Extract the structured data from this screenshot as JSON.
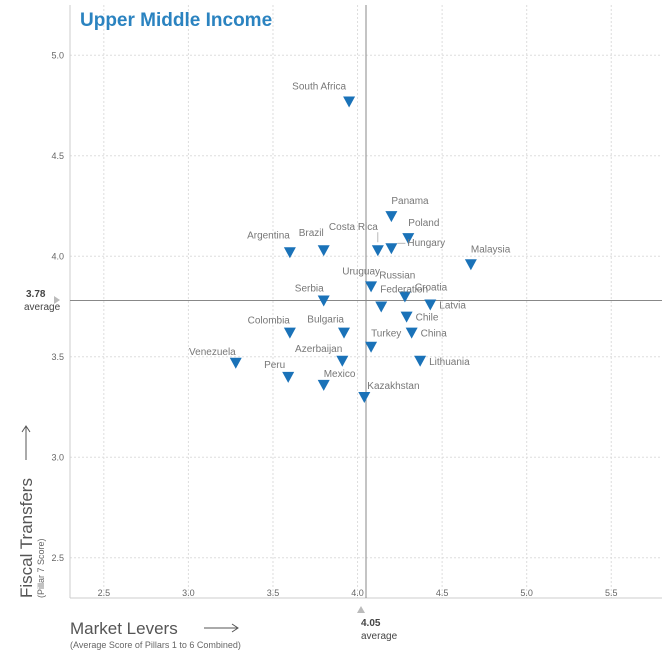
{
  "chart_data": {
    "type": "scatter",
    "title": "Upper Middle Income",
    "xlabel": "Market Levers",
    "xlabel_sub": "(Average Score of Pillars 1 to 6 Combined)",
    "ylabel": "Fiscal Transfers",
    "ylabel_sub": "(Pillar 7 Score)",
    "xlim": [
      2.3,
      5.8
    ],
    "ylim": [
      2.3,
      5.25
    ],
    "xticks": [
      "2.5",
      "3.0",
      "3.5",
      "4.0",
      "4.5",
      "5.0",
      "5.5"
    ],
    "yticks": [
      "2.5",
      "3.0",
      "3.5",
      "4.0",
      "4.5",
      "5.0"
    ],
    "grid": true,
    "marker": "triangle-down",
    "colors": {
      "title": "#2b83c0",
      "marker": "#1a72b8",
      "grid": "#dddddd",
      "axis": "#888888"
    },
    "average_x": {
      "value": "4.05",
      "label": "average"
    },
    "average_y": {
      "value": "3.78",
      "label": "average"
    },
    "points": [
      {
        "label": "South Africa",
        "x": 3.95,
        "y": 4.77
      },
      {
        "label": "Panama",
        "x": 4.2,
        "y": 4.2
      },
      {
        "label": "Poland",
        "x": 4.3,
        "y": 4.09
      },
      {
        "label": "Costa Rica",
        "x": 4.12,
        "y": 4.03
      },
      {
        "label": "Hungary",
        "x": 4.2,
        "y": 4.04
      },
      {
        "label": "Malaysia",
        "x": 4.67,
        "y": 3.96
      },
      {
        "label": "Argentina",
        "x": 3.6,
        "y": 4.02
      },
      {
        "label": "Brazil",
        "x": 3.8,
        "y": 4.03
      },
      {
        "label": "Uruguay",
        "x": 4.08,
        "y": 3.85
      },
      {
        "label": "Russian Federation",
        "x": 4.14,
        "y": 3.75
      },
      {
        "label": "Croatia",
        "x": 4.28,
        "y": 3.8
      },
      {
        "label": "Latvia",
        "x": 4.43,
        "y": 3.76
      },
      {
        "label": "Serbia",
        "x": 3.8,
        "y": 3.78
      },
      {
        "label": "Chile",
        "x": 4.29,
        "y": 3.7
      },
      {
        "label": "China",
        "x": 4.32,
        "y": 3.62
      },
      {
        "label": "Turkey",
        "x": 4.08,
        "y": 3.55
      },
      {
        "label": "Colombia",
        "x": 3.6,
        "y": 3.62
      },
      {
        "label": "Bulgaria",
        "x": 3.92,
        "y": 3.62
      },
      {
        "label": "Azerbaijan",
        "x": 3.91,
        "y": 3.48
      },
      {
        "label": "Lithuania",
        "x": 4.37,
        "y": 3.48
      },
      {
        "label": "Venezuela",
        "x": 3.28,
        "y": 3.47
      },
      {
        "label": "Peru",
        "x": 3.59,
        "y": 3.4
      },
      {
        "label": "Mexico",
        "x": 3.8,
        "y": 3.36
      },
      {
        "label": "Kazakhstan",
        "x": 4.04,
        "y": 3.3
      }
    ]
  }
}
